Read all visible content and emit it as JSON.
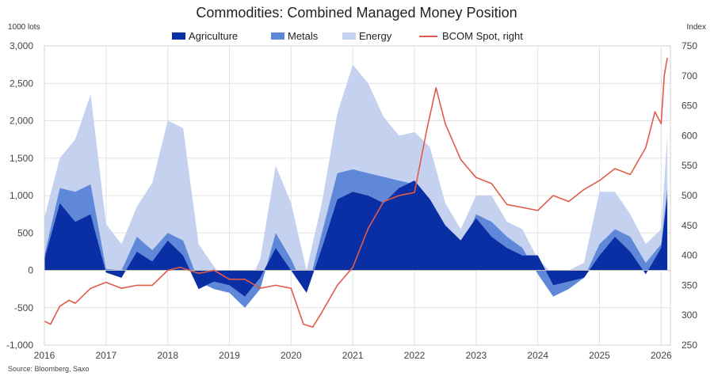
{
  "chart_data": {
    "type": "area",
    "title": "Commodities: Combined Managed Money Position",
    "left_axis_label": "1000 lots",
    "right_axis_label": "Index",
    "source": "Source: Bloomberg, Saxo",
    "legend_position": "top",
    "grid": true,
    "left_ylim": [
      -1000,
      3000
    ],
    "right_ylim": [
      250,
      750
    ],
    "left_ticks": [
      "3,000",
      "2,500",
      "2,000",
      "1,500",
      "1,000",
      "500",
      "0",
      "-500",
      "-1,000"
    ],
    "right_ticks": [
      "750",
      "700",
      "650",
      "600",
      "550",
      "500",
      "450",
      "400",
      "350",
      "300",
      "250"
    ],
    "x_ticks": [
      "2016",
      "2017",
      "2018",
      "2019",
      "2020",
      "2021",
      "2022",
      "2023",
      "2024",
      "2025",
      "2026"
    ],
    "colors": {
      "agriculture": "#0a2fa4",
      "metals": "#5f88d8",
      "energy": "#c4d1ef",
      "bcom": "#e15b4a"
    },
    "series": [
      {
        "name": "Agriculture",
        "type": "area",
        "x": [
          2016.0,
          2016.25,
          2016.5,
          2016.75,
          2017.0,
          2017.25,
          2017.5,
          2017.75,
          2018.0,
          2018.25,
          2018.5,
          2018.75,
          2019.0,
          2019.25,
          2019.5,
          2019.75,
          2020.0,
          2020.25,
          2020.5,
          2020.75,
          2021.0,
          2021.25,
          2021.5,
          2021.75,
          2022.0,
          2022.25,
          2022.5,
          2022.75,
          2023.0,
          2023.25,
          2023.5,
          2023.75,
          2024.0,
          2024.25,
          2024.5,
          2024.75,
          2025.0,
          2025.25,
          2025.5,
          2025.75,
          2026.0,
          2026.1
        ],
        "values": [
          150,
          900,
          650,
          750,
          -30,
          -100,
          250,
          120,
          400,
          200,
          -250,
          -150,
          -200,
          -350,
          -100,
          300,
          0,
          -300,
          300,
          950,
          1050,
          1000,
          900,
          1100,
          1200,
          950,
          600,
          400,
          700,
          450,
          300,
          200,
          200,
          -200,
          -150,
          -100,
          200,
          450,
          250,
          -50,
          300,
          1000
        ]
      },
      {
        "name": "Metals",
        "type": "area",
        "x": [
          2016.0,
          2016.25,
          2016.5,
          2016.75,
          2017.0,
          2017.25,
          2017.5,
          2017.75,
          2018.0,
          2018.25,
          2018.5,
          2018.75,
          2019.0,
          2019.25,
          2019.5,
          2019.75,
          2020.0,
          2020.25,
          2020.5,
          2020.75,
          2021.0,
          2021.25,
          2021.5,
          2021.75,
          2022.0,
          2022.25,
          2022.5,
          2022.75,
          2023.0,
          2023.25,
          2023.5,
          2023.75,
          2024.0,
          2024.25,
          2024.5,
          2024.75,
          2025.0,
          2025.25,
          2025.5,
          2025.75,
          2026.0,
          2026.1
        ],
        "values": [
          50,
          200,
          400,
          400,
          50,
          100,
          200,
          150,
          100,
          200,
          100,
          -100,
          -100,
          -150,
          -150,
          200,
          150,
          0,
          200,
          350,
          300,
          300,
          350,
          100,
          -50,
          0,
          -200,
          -150,
          50,
          200,
          150,
          100,
          -250,
          -150,
          -100,
          0,
          150,
          100,
          200,
          150,
          50,
          100
        ]
      },
      {
        "name": "Energy",
        "type": "area",
        "x": [
          2016.0,
          2016.25,
          2016.5,
          2016.75,
          2017.0,
          2017.25,
          2017.5,
          2017.75,
          2018.0,
          2018.25,
          2018.5,
          2018.75,
          2019.0,
          2019.25,
          2019.5,
          2019.75,
          2020.0,
          2020.25,
          2020.5,
          2020.75,
          2021.0,
          2021.25,
          2021.5,
          2021.75,
          2022.0,
          2022.25,
          2022.5,
          2022.75,
          2023.0,
          2023.25,
          2023.5,
          2023.75,
          2024.0,
          2024.25,
          2024.5,
          2024.75,
          2025.0,
          2025.25,
          2025.5,
          2025.75,
          2026.0,
          2026.1
        ],
        "values": [
          500,
          400,
          700,
          1200,
          600,
          350,
          400,
          900,
          1500,
          1500,
          500,
          300,
          100,
          200,
          400,
          900,
          750,
          300,
          400,
          800,
          1400,
          1200,
          800,
          600,
          700,
          700,
          500,
          300,
          250,
          350,
          200,
          250,
          200,
          300,
          250,
          200,
          700,
          500,
          300,
          250,
          200,
          700
        ]
      },
      {
        "name": "BCOM Spot, right",
        "type": "line",
        "axis": "right",
        "x": [
          2016.0,
          2016.1,
          2016.25,
          2016.4,
          2016.5,
          2016.75,
          2017.0,
          2017.25,
          2017.5,
          2017.75,
          2018.0,
          2018.2,
          2018.5,
          2018.75,
          2019.0,
          2019.25,
          2019.5,
          2019.75,
          2020.0,
          2020.2,
          2020.35,
          2020.5,
          2020.75,
          2021.0,
          2021.25,
          2021.5,
          2021.75,
          2022.0,
          2022.2,
          2022.35,
          2022.5,
          2022.75,
          2023.0,
          2023.25,
          2023.5,
          2023.75,
          2024.0,
          2024.25,
          2024.5,
          2024.75,
          2025.0,
          2025.25,
          2025.5,
          2025.75,
          2025.9,
          2026.0,
          2026.05,
          2026.1
        ],
        "values": [
          290,
          285,
          315,
          325,
          320,
          345,
          355,
          345,
          350,
          350,
          375,
          380,
          370,
          375,
          360,
          360,
          345,
          350,
          345,
          285,
          280,
          305,
          350,
          380,
          445,
          490,
          500,
          505,
          610,
          680,
          620,
          560,
          530,
          520,
          485,
          480,
          475,
          500,
          490,
          510,
          525,
          545,
          535,
          580,
          640,
          620,
          700,
          730
        ]
      }
    ]
  }
}
